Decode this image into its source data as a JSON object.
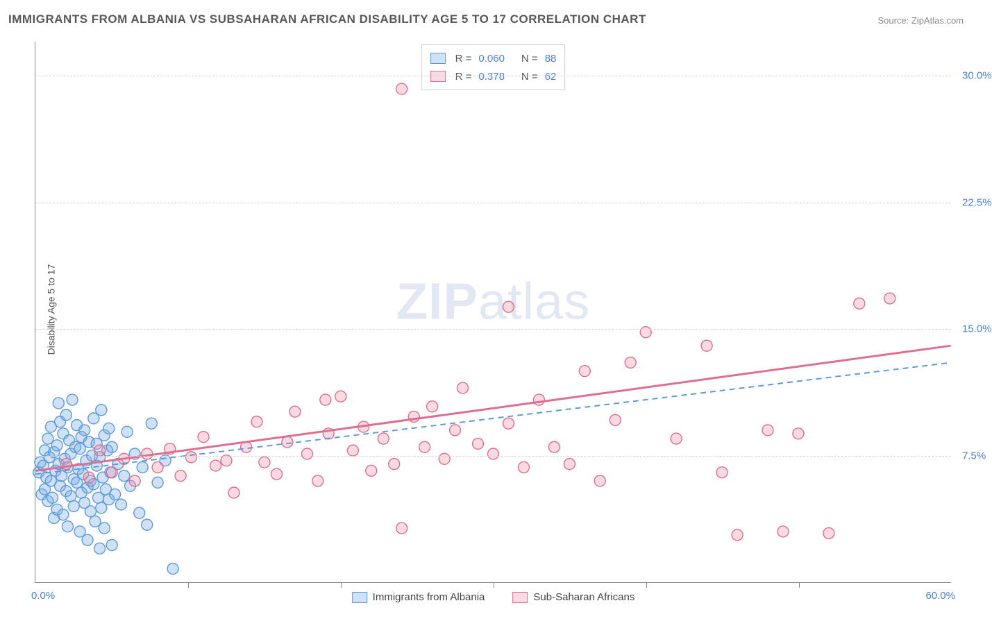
{
  "title": "IMMIGRANTS FROM ALBANIA VS SUBSAHARAN AFRICAN DISABILITY AGE 5 TO 17 CORRELATION CHART",
  "source": "Source: ZipAtlas.com",
  "ylabel": "Disability Age 5 to 17",
  "watermark_a": "ZIP",
  "watermark_b": "atlas",
  "chart": {
    "type": "scatter",
    "xlim": [
      0,
      60
    ],
    "ylim": [
      0,
      32
    ],
    "x_ticks_minor": [
      10,
      20,
      30,
      40,
      50
    ],
    "x_tick_labels": {
      "min": "0.0%",
      "max": "60.0%"
    },
    "y_gridlines": [
      7.5,
      15.0,
      22.5,
      30.0
    ],
    "y_tick_labels": [
      "7.5%",
      "15.0%",
      "22.5%",
      "30.0%"
    ],
    "background_color": "#ffffff",
    "grid_color": "#d6d6d6",
    "axis_color": "#888888",
    "label_color": "#4a7fd6",
    "title_color": "#575757",
    "title_fontsize": 17,
    "label_fontsize": 15,
    "marker_radius": 8,
    "marker_stroke_width": 1.4,
    "series": [
      {
        "name": "Immigrants from Albania",
        "fill": "rgba(120,170,230,0.35)",
        "stroke": "#5c9bdc",
        "R": "0.060",
        "N": "88",
        "trend": {
          "x1": 0,
          "y1": 6.4,
          "x2": 60,
          "y2": 13.0,
          "style": "dashed",
          "width": 2,
          "color": "#5c9bdc"
        },
        "points": [
          [
            0.2,
            6.5
          ],
          [
            0.3,
            7.1
          ],
          [
            0.4,
            5.2
          ],
          [
            0.5,
            6.9
          ],
          [
            0.6,
            7.8
          ],
          [
            0.6,
            5.5
          ],
          [
            0.7,
            6.2
          ],
          [
            0.8,
            8.5
          ],
          [
            0.8,
            4.8
          ],
          [
            0.9,
            7.4
          ],
          [
            1.0,
            6.0
          ],
          [
            1.0,
            9.2
          ],
          [
            1.1,
            5.0
          ],
          [
            1.2,
            7.7
          ],
          [
            1.2,
            3.8
          ],
          [
            1.3,
            6.6
          ],
          [
            1.4,
            8.1
          ],
          [
            1.4,
            4.3
          ],
          [
            1.5,
            7.0
          ],
          [
            1.5,
            10.6
          ],
          [
            1.6,
            5.7
          ],
          [
            1.6,
            9.5
          ],
          [
            1.7,
            6.3
          ],
          [
            1.8,
            8.8
          ],
          [
            1.8,
            4.0
          ],
          [
            1.9,
            7.3
          ],
          [
            2.0,
            5.4
          ],
          [
            2.0,
            9.9
          ],
          [
            2.1,
            6.8
          ],
          [
            2.1,
            3.3
          ],
          [
            2.2,
            8.4
          ],
          [
            2.3,
            5.1
          ],
          [
            2.3,
            7.6
          ],
          [
            2.4,
            10.8
          ],
          [
            2.5,
            6.1
          ],
          [
            2.5,
            4.5
          ],
          [
            2.6,
            8.0
          ],
          [
            2.7,
            5.9
          ],
          [
            2.7,
            9.3
          ],
          [
            2.8,
            6.7
          ],
          [
            2.9,
            3.0
          ],
          [
            2.9,
            7.9
          ],
          [
            3.0,
            5.3
          ],
          [
            3.0,
            8.6
          ],
          [
            3.1,
            6.4
          ],
          [
            3.2,
            4.7
          ],
          [
            3.2,
            9.0
          ],
          [
            3.3,
            7.2
          ],
          [
            3.4,
            5.6
          ],
          [
            3.4,
            2.5
          ],
          [
            3.5,
            8.3
          ],
          [
            3.6,
            6.0
          ],
          [
            3.6,
            4.2
          ],
          [
            3.7,
            7.5
          ],
          [
            3.8,
            9.7
          ],
          [
            3.8,
            5.8
          ],
          [
            3.9,
            3.6
          ],
          [
            4.0,
            6.9
          ],
          [
            4.0,
            8.2
          ],
          [
            4.1,
            5.0
          ],
          [
            4.2,
            7.4
          ],
          [
            4.3,
            4.4
          ],
          [
            4.3,
            10.2
          ],
          [
            4.4,
            6.2
          ],
          [
            4.5,
            8.7
          ],
          [
            4.5,
            3.2
          ],
          [
            4.6,
            5.5
          ],
          [
            4.7,
            7.8
          ],
          [
            4.8,
            4.9
          ],
          [
            4.8,
            9.1
          ],
          [
            4.9,
            6.5
          ],
          [
            5.0,
            2.2
          ],
          [
            5.0,
            8.0
          ],
          [
            5.2,
            5.2
          ],
          [
            5.4,
            7.0
          ],
          [
            5.6,
            4.6
          ],
          [
            5.8,
            6.3
          ],
          [
            6.0,
            8.9
          ],
          [
            6.2,
            5.7
          ],
          [
            6.5,
            7.6
          ],
          [
            6.8,
            4.1
          ],
          [
            7.0,
            6.8
          ],
          [
            7.3,
            3.4
          ],
          [
            7.6,
            9.4
          ],
          [
            8.0,
            5.9
          ],
          [
            8.5,
            7.2
          ],
          [
            9.0,
            0.8
          ],
          [
            4.2,
            2.0
          ]
        ]
      },
      {
        "name": "Sub-Saharan Africans",
        "fill": "rgba(240,150,170,0.35)",
        "stroke": "#e06f8f",
        "R": "0.378",
        "N": "62",
        "trend": {
          "x1": 0,
          "y1": 6.6,
          "x2": 60,
          "y2": 14.0,
          "style": "solid",
          "width": 3,
          "color": "#e06f8f"
        },
        "points": [
          [
            2.0,
            7.0
          ],
          [
            3.5,
            6.2
          ],
          [
            4.2,
            7.8
          ],
          [
            5.0,
            6.5
          ],
          [
            5.8,
            7.3
          ],
          [
            6.5,
            6.0
          ],
          [
            7.3,
            7.6
          ],
          [
            8.0,
            6.8
          ],
          [
            8.8,
            7.9
          ],
          [
            9.5,
            6.3
          ],
          [
            10.2,
            7.4
          ],
          [
            11.0,
            8.6
          ],
          [
            11.8,
            6.9
          ],
          [
            12.5,
            7.2
          ],
          [
            13.0,
            5.3
          ],
          [
            13.8,
            8.0
          ],
          [
            14.5,
            9.5
          ],
          [
            15.0,
            7.1
          ],
          [
            15.8,
            6.4
          ],
          [
            16.5,
            8.3
          ],
          [
            17.0,
            10.1
          ],
          [
            17.8,
            7.6
          ],
          [
            18.5,
            6.0
          ],
          [
            19.2,
            8.8
          ],
          [
            20.0,
            11.0
          ],
          [
            20.8,
            7.8
          ],
          [
            21.5,
            9.2
          ],
          [
            22.0,
            6.6
          ],
          [
            22.8,
            8.5
          ],
          [
            23.5,
            7.0
          ],
          [
            24.0,
            3.2
          ],
          [
            24.8,
            9.8
          ],
          [
            25.5,
            8.0
          ],
          [
            26.0,
            10.4
          ],
          [
            26.8,
            7.3
          ],
          [
            27.5,
            9.0
          ],
          [
            28.0,
            11.5
          ],
          [
            29.0,
            8.2
          ],
          [
            30.0,
            7.6
          ],
          [
            31.0,
            9.4
          ],
          [
            32.0,
            6.8
          ],
          [
            33.0,
            10.8
          ],
          [
            34.0,
            8.0
          ],
          [
            35.0,
            7.0
          ],
          [
            36.0,
            12.5
          ],
          [
            37.0,
            6.0
          ],
          [
            38.0,
            9.6
          ],
          [
            39.0,
            13.0
          ],
          [
            40.0,
            14.8
          ],
          [
            42.0,
            8.5
          ],
          [
            44.0,
            14.0
          ],
          [
            45.0,
            6.5
          ],
          [
            46.0,
            2.8
          ],
          [
            48.0,
            9.0
          ],
          [
            49.0,
            3.0
          ],
          [
            50.0,
            8.8
          ],
          [
            52.0,
            2.9
          ],
          [
            54.0,
            16.5
          ],
          [
            56.0,
            16.8
          ],
          [
            24.0,
            29.2
          ],
          [
            31.0,
            16.3
          ],
          [
            19.0,
            10.8
          ]
        ]
      }
    ]
  },
  "legend_top": {
    "r_label": "R =",
    "n_label": "N ="
  }
}
